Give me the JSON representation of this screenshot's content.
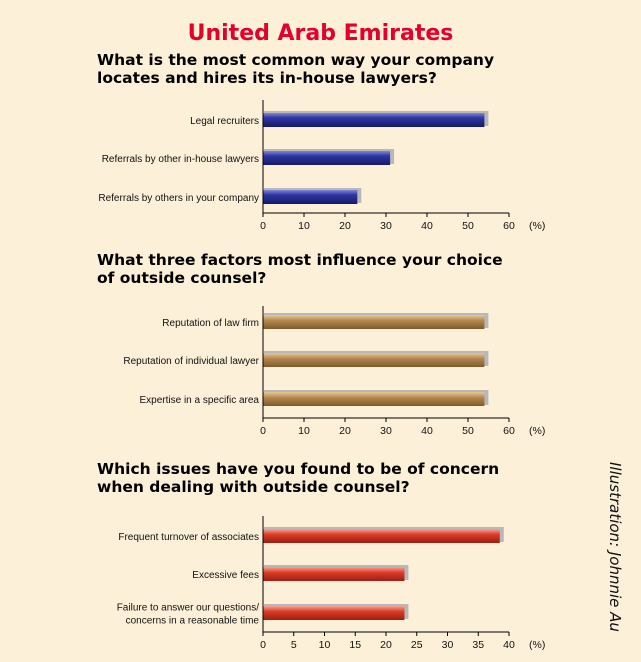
{
  "main_title": "United Arab Emirates",
  "credit": "Illustration: Johnnie Au",
  "colors": {
    "title": "#e4002b",
    "background": "#fdf0d8",
    "blue": "#2a2f8f",
    "tan": "#b4884f",
    "red": "#dd3a26",
    "shadow": "#b8b8b8"
  },
  "chart_data": [
    {
      "type": "bar",
      "orientation": "horizontal",
      "title": [
        "What is the most common way your company",
        "locates and hires its in-house lawyers?"
      ],
      "categories": [
        [
          "Legal recruiters"
        ],
        [
          "Referrals by other in-house lawyers"
        ],
        [
          "Referrals by others in your company"
        ]
      ],
      "values": [
        54,
        31,
        23
      ],
      "xlim": [
        0,
        60
      ],
      "xticks": [
        "0",
        "10",
        "20",
        "30",
        "40",
        "50",
        "60"
      ],
      "unit": "(%)",
      "color": "blue"
    },
    {
      "type": "bar",
      "orientation": "horizontal",
      "title": [
        "What three factors most influence your choice",
        "of outside counsel?"
      ],
      "categories": [
        [
          "Reputation of law firm"
        ],
        [
          "Reputation of individual lawyer"
        ],
        [
          "Expertise in a specific area"
        ]
      ],
      "values": [
        54,
        54,
        54
      ],
      "xlim": [
        0,
        60
      ],
      "xticks": [
        "0",
        "10",
        "20",
        "30",
        "40",
        "50",
        "60"
      ],
      "unit": "(%)",
      "color": "tan"
    },
    {
      "type": "bar",
      "orientation": "horizontal",
      "title": [
        "Which issues have you found to be of concern",
        "when dealing with outside counsel?"
      ],
      "categories": [
        [
          "Frequent turnover of associates"
        ],
        [
          "Excessive fees"
        ],
        [
          "Failure to answer our questions/",
          "concerns in a reasonable time"
        ]
      ],
      "values": [
        38.5,
        23,
        23
      ],
      "xlim": [
        0,
        40
      ],
      "xticks": [
        "0",
        "5",
        "10",
        "15",
        "20",
        "25",
        "30",
        "35",
        "40"
      ],
      "unit": "(%)",
      "color": "red"
    }
  ]
}
